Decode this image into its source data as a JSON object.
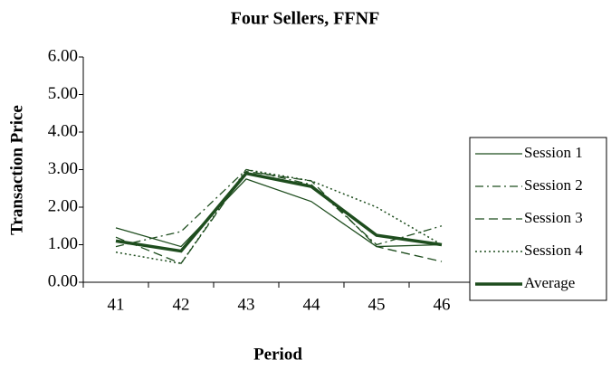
{
  "chart_data": {
    "type": "line",
    "title": "Four Sellers, FFNF",
    "x_label": "Period",
    "y_label": "Transaction Price",
    "categories": [
      "41",
      "42",
      "43",
      "44",
      "45",
      "46"
    ],
    "ylim": [
      0,
      6
    ],
    "yticks": [
      {
        "value": 0,
        "label": "0.00"
      },
      {
        "value": 1,
        "label": "1.00"
      },
      {
        "value": 2,
        "label": "2.00"
      },
      {
        "value": 3,
        "label": "3.00"
      },
      {
        "value": 4,
        "label": "4.00"
      },
      {
        "value": 5,
        "label": "5.00"
      },
      {
        "value": 6,
        "label": "6.00"
      }
    ],
    "legend": "right",
    "series": [
      {
        "name": "Session 1",
        "color": "#1e4d1e",
        "line_style": "solid",
        "values": [
          1.45,
          0.95,
          2.75,
          2.15,
          0.95,
          1.0
        ]
      },
      {
        "name": "Session 2",
        "color": "#1e4d1e",
        "line_style": "dashdot",
        "values": [
          0.95,
          1.35,
          3.0,
          2.6,
          1.0,
          1.5
        ]
      },
      {
        "name": "Session 3",
        "color": "#1e4d1e",
        "line_style": "dash",
        "values": [
          1.2,
          0.5,
          2.95,
          2.7,
          0.95,
          0.55
        ]
      },
      {
        "name": "Session 4",
        "color": "#1e4d1e",
        "line_style": "dot",
        "values": [
          0.8,
          0.5,
          3.0,
          2.7,
          2.0,
          1.0
        ]
      },
      {
        "name": "Average",
        "color": "#1e4d1e",
        "line_style": "thick",
        "values": [
          1.1,
          0.83,
          2.9,
          2.55,
          1.25,
          1.0
        ]
      }
    ]
  }
}
